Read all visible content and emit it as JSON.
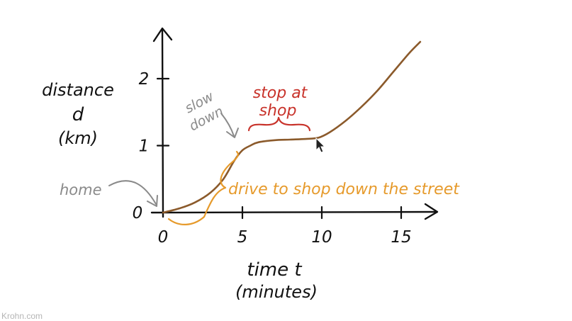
{
  "chart_data": {
    "type": "line",
    "ylabel_lines": [
      "distance",
      "d",
      "(km)"
    ],
    "xlabel_lines": [
      "time t",
      "(minutes)"
    ],
    "x_ticks": [
      "0",
      "5",
      "10",
      "15"
    ],
    "y_ticks": [
      "0",
      "1",
      "2"
    ],
    "xlim": [
      0,
      17
    ],
    "ylim": [
      0,
      2.6
    ],
    "grid": false,
    "series": [
      {
        "color": "#8b5a2b",
        "x": [
          0,
          1,
          2,
          3,
          3.8,
          4.5,
          5,
          5.5,
          6,
          7,
          8,
          9,
          9.8,
          10.5,
          11.5,
          12.5,
          13.5,
          14.5,
          15.5,
          16.2
        ],
        "y": [
          0,
          0.06,
          0.15,
          0.3,
          0.5,
          0.78,
          0.93,
          1.0,
          1.05,
          1.08,
          1.09,
          1.1,
          1.12,
          1.2,
          1.37,
          1.58,
          1.82,
          2.1,
          2.38,
          2.55
        ]
      }
    ],
    "annotations": {
      "home": "home",
      "slow_down_lines": [
        "slow",
        "down"
      ],
      "stop_lines": [
        "stop at",
        "shop"
      ],
      "drive": "drive to shop down the street"
    }
  },
  "colors": {
    "ink": "#111111",
    "curve": "#8b5a2b",
    "grey": "#8a8a8a",
    "red": "#c8322a",
    "orange": "#e69a2b"
  },
  "icons": [
    "mouse-cursor-icon"
  ],
  "credit": "Krohn.com"
}
